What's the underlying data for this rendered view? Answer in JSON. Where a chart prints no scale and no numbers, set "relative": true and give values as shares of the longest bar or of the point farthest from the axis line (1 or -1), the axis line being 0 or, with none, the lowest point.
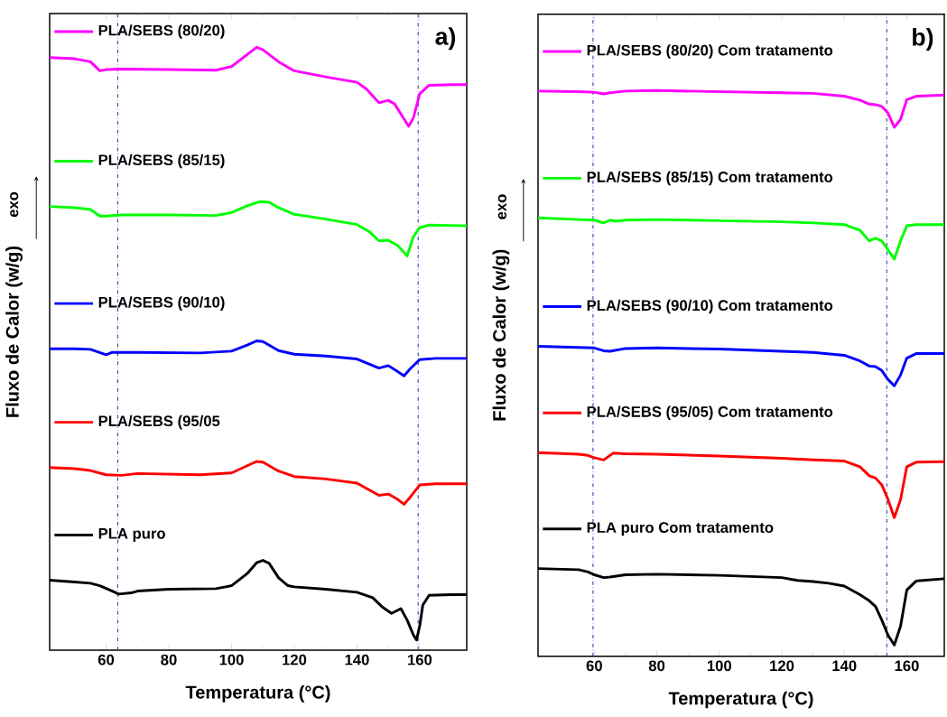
{
  "chart_data": [
    {
      "type": "line",
      "relative": true,
      "xlabel": "Temperatura (°C)",
      "ylabel": "Fluxo de Calor (w/g)",
      "annotations": [
        "a)",
        "exo"
      ],
      "xlim": [
        42,
        175
      ],
      "xticks": [
        60,
        80,
        100,
        120,
        140,
        160
      ],
      "marker": "none",
      "line_style": "solid",
      "legend": "top left",
      "ref_lines": [
        {
          "axis": "x",
          "value": 63.7,
          "color": "#1a1a9a",
          "line_style": "dashdot"
        },
        {
          "axis": "x",
          "value": 159.5,
          "color": "#1a1a9a",
          "line_style": "dashdot"
        }
      ],
      "series": [
        {
          "name": "PLA/SEBS (80/20)",
          "color": "#ff00ff",
          "x": [
            42,
            50,
            55,
            58,
            60,
            65,
            80,
            95,
            100,
            105,
            108,
            110,
            115,
            120,
            130,
            140,
            143,
            147,
            150,
            152,
            155,
            156.5,
            158,
            160,
            163,
            170,
            175
          ],
          "values": [
            0.983,
            0.981,
            0.976,
            0.961,
            0.963,
            0.964,
            0.963,
            0.962,
            0.968,
            0.988,
            1.0,
            0.996,
            0.976,
            0.961,
            0.951,
            0.942,
            0.931,
            0.908,
            0.912,
            0.906,
            0.881,
            0.869,
            0.883,
            0.923,
            0.937,
            0.938,
            0.938
          ]
        },
        {
          "name": "PLA/SEBS (85/15)",
          "color": "#00ff00",
          "x": [
            42,
            50,
            55,
            58,
            60,
            65,
            80,
            95,
            100,
            105,
            109,
            112,
            115,
            120,
            130,
            140,
            144,
            147,
            150,
            153,
            156,
            158,
            160,
            163,
            175
          ],
          "values": [
            0.736,
            0.734,
            0.731,
            0.72,
            0.72,
            0.722,
            0.722,
            0.721,
            0.726,
            0.737,
            0.744,
            0.743,
            0.734,
            0.723,
            0.715,
            0.706,
            0.694,
            0.679,
            0.68,
            0.671,
            0.654,
            0.686,
            0.701,
            0.705,
            0.704
          ]
        },
        {
          "name": "PLA/SEBS (90/10)",
          "color": "#0000ff",
          "x": [
            42,
            50,
            55,
            60,
            62,
            70,
            90,
            100,
            105,
            108,
            110,
            115,
            120,
            130,
            140,
            147,
            150,
            153,
            155,
            157,
            160,
            165,
            175
          ],
          "values": [
            0.5,
            0.5,
            0.499,
            0.49,
            0.494,
            0.494,
            0.493,
            0.496,
            0.506,
            0.513,
            0.512,
            0.497,
            0.491,
            0.488,
            0.483,
            0.468,
            0.472,
            0.462,
            0.455,
            0.467,
            0.482,
            0.484,
            0.484
          ]
        },
        {
          "name": "PLA/SEBS (95/05",
          "color": "#ff0000",
          "x": [
            42,
            50,
            55,
            60,
            65,
            70,
            90,
            100,
            105,
            108,
            110,
            115,
            120,
            130,
            140,
            147,
            150,
            153,
            155,
            157,
            160,
            165,
            175
          ],
          "values": [
            0.303,
            0.301,
            0.298,
            0.291,
            0.29,
            0.293,
            0.291,
            0.294,
            0.306,
            0.313,
            0.312,
            0.297,
            0.288,
            0.284,
            0.277,
            0.257,
            0.259,
            0.25,
            0.242,
            0.254,
            0.274,
            0.276,
            0.276
          ]
        },
        {
          "name": "PLA puro",
          "color": "#000000",
          "x": [
            42,
            50,
            55,
            58,
            62,
            64,
            68,
            70,
            80,
            95,
            100,
            105,
            108,
            110,
            112,
            115,
            118,
            120,
            130,
            140,
            145,
            148,
            151,
            154,
            156,
            158,
            159,
            160,
            161,
            163,
            170,
            175
          ],
          "values": [
            0.116,
            0.113,
            0.111,
            0.107,
            0.098,
            0.093,
            0.095,
            0.098,
            0.101,
            0.102,
            0.107,
            0.127,
            0.145,
            0.149,
            0.144,
            0.12,
            0.107,
            0.105,
            0.101,
            0.096,
            0.087,
            0.072,
            0.061,
            0.069,
            0.05,
            0.025,
            0.017,
            0.04,
            0.075,
            0.091,
            0.092,
            0.092
          ]
        }
      ]
    },
    {
      "type": "line",
      "relative": true,
      "xlabel": "Temperatura (°C)",
      "ylabel": "Fluxo de Calor (w/g)",
      "annotations": [
        "b)",
        "exo"
      ],
      "xlim": [
        42,
        172
      ],
      "xticks": [
        60,
        80,
        100,
        120,
        140,
        160
      ],
      "marker": "none",
      "line_style": "solid",
      "legend": "top left",
      "ref_lines": [
        {
          "axis": "x",
          "value": 59.6,
          "color": "#1a1a9a",
          "line_style": "dashdot"
        },
        {
          "axis": "x",
          "value": 153.6,
          "color": "#1a1a9a",
          "line_style": "dashdot"
        }
      ],
      "series": [
        {
          "name": "PLA/SEBS (80/20) Com tratamento",
          "color": "#ff00ff",
          "x": [
            42,
            55,
            60,
            63,
            65,
            70,
            80,
            100,
            120,
            130,
            140,
            145,
            148,
            150,
            152,
            154,
            156,
            158,
            160,
            163,
            172
          ],
          "values": [
            0.999,
            0.998,
            0.997,
            0.994,
            0.996,
            0.999,
            1.0,
            0.998,
            0.996,
            0.995,
            0.99,
            0.983,
            0.976,
            0.975,
            0.972,
            0.96,
            0.935,
            0.949,
            0.984,
            0.99,
            0.992
          ]
        },
        {
          "name": "PLA/SEBS (85/15) Com tratamento",
          "color": "#00ff00",
          "x": [
            42,
            55,
            60,
            63,
            65,
            67,
            70,
            80,
            100,
            120,
            130,
            140,
            145,
            148,
            150,
            152,
            154,
            156,
            158,
            160,
            163,
            172
          ],
          "values": [
            0.775,
            0.772,
            0.771,
            0.766,
            0.771,
            0.769,
            0.771,
            0.772,
            0.77,
            0.768,
            0.766,
            0.763,
            0.753,
            0.734,
            0.739,
            0.734,
            0.718,
            0.702,
            0.734,
            0.761,
            0.763,
            0.763
          ]
        },
        {
          "name": "PLA/SEBS (90/10) Com tratamento",
          "color": "#0000ff",
          "x": [
            42,
            55,
            60,
            63,
            65,
            70,
            80,
            100,
            120,
            130,
            140,
            145,
            148,
            150,
            152,
            154,
            156,
            158,
            160,
            163,
            172
          ],
          "values": [
            0.548,
            0.546,
            0.545,
            0.54,
            0.539,
            0.544,
            0.545,
            0.543,
            0.539,
            0.537,
            0.532,
            0.522,
            0.513,
            0.512,
            0.505,
            0.489,
            0.478,
            0.497,
            0.527,
            0.535,
            0.535
          ]
        },
        {
          "name": "PLA/SEBS (95/05) Com tratamento",
          "color": "#ff0000",
          "x": [
            42,
            55,
            58,
            60,
            63,
            64,
            66,
            70,
            80,
            100,
            120,
            130,
            140,
            145,
            148,
            150,
            152,
            154,
            156,
            158,
            160,
            163,
            172
          ],
          "values": [
            0.36,
            0.357,
            0.355,
            0.351,
            0.347,
            0.351,
            0.359,
            0.358,
            0.357,
            0.354,
            0.35,
            0.347,
            0.345,
            0.335,
            0.319,
            0.315,
            0.303,
            0.277,
            0.245,
            0.277,
            0.335,
            0.343,
            0.344
          ]
        },
        {
          "name": "PLA puro Com tratamento",
          "color": "#000000",
          "x": [
            42,
            55,
            58,
            60,
            63,
            65,
            70,
            80,
            100,
            120,
            125,
            130,
            135,
            140,
            145,
            148,
            150,
            152,
            154,
            156,
            158,
            160,
            163,
            172
          ],
          "values": [
            0.155,
            0.153,
            0.149,
            0.144,
            0.139,
            0.14,
            0.144,
            0.145,
            0.143,
            0.139,
            0.134,
            0.132,
            0.129,
            0.124,
            0.109,
            0.098,
            0.088,
            0.064,
            0.037,
            0.02,
            0.053,
            0.117,
            0.133,
            0.137
          ]
        }
      ]
    }
  ]
}
